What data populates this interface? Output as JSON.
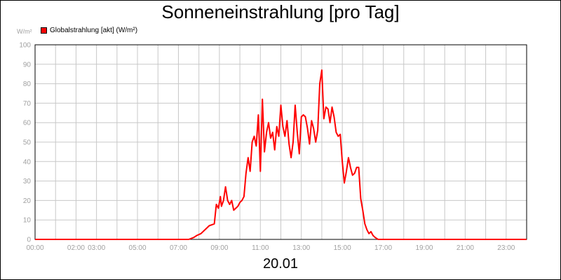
{
  "chart_data": {
    "type": "line",
    "title": "Sonneneinstrahlung [pro Tag]",
    "ylabel": "W/m²",
    "xlabel": "20.01",
    "ylim": [
      0,
      100
    ],
    "yticks": [
      0,
      10,
      20,
      30,
      40,
      50,
      60,
      70,
      80,
      90,
      100
    ],
    "xlim": [
      0,
      24
    ],
    "xtick_labels": [
      "00:00",
      "02:00",
      "03:00",
      "05:00",
      "07:00",
      "09:00",
      "11:00",
      "13:00",
      "15:00",
      "17:00",
      "19:00",
      "21:00",
      "23:00"
    ],
    "xtick_hours": [
      0,
      2,
      3,
      5,
      7,
      9,
      11,
      13,
      15,
      17,
      19,
      21,
      23
    ],
    "grid": true,
    "legend_position": "top-left",
    "series": [
      {
        "name": "Globalstrahlung [akt] (W/m²)",
        "color": "#ff0000",
        "x": [
          0,
          7.5,
          7.75,
          7.9,
          8.1,
          8.3,
          8.5,
          8.75,
          8.85,
          8.95,
          9.05,
          9.1,
          9.2,
          9.3,
          9.4,
          9.5,
          9.6,
          9.7,
          9.8,
          9.9,
          10.0,
          10.1,
          10.2,
          10.3,
          10.4,
          10.5,
          10.6,
          10.7,
          10.8,
          10.9,
          11.0,
          11.1,
          11.2,
          11.3,
          11.4,
          11.5,
          11.6,
          11.7,
          11.8,
          11.9,
          12.0,
          12.1,
          12.2,
          12.3,
          12.4,
          12.5,
          12.6,
          12.7,
          12.8,
          12.9,
          13.0,
          13.1,
          13.2,
          13.3,
          13.4,
          13.5,
          13.6,
          13.7,
          13.8,
          13.9,
          14.0,
          14.1,
          14.2,
          14.3,
          14.4,
          14.5,
          14.6,
          14.7,
          14.8,
          14.9,
          15.0,
          15.1,
          15.2,
          15.3,
          15.4,
          15.5,
          15.6,
          15.7,
          15.8,
          15.9,
          16.0,
          16.1,
          16.2,
          16.3,
          16.4,
          16.5,
          16.6,
          16.75,
          17.0,
          17.2,
          17.5,
          24
        ],
        "values": [
          0,
          0,
          1,
          2,
          3,
          5,
          7,
          8,
          18,
          16,
          22,
          17,
          20,
          27,
          20,
          18,
          20,
          15,
          16,
          17,
          19,
          20,
          22,
          34,
          42,
          35,
          50,
          53,
          48,
          64,
          35,
          72,
          45,
          55,
          60,
          52,
          55,
          46,
          58,
          53,
          69,
          58,
          53,
          61,
          49,
          42,
          50,
          69,
          55,
          44,
          63,
          64,
          63,
          57,
          49,
          61,
          57,
          50,
          56,
          80,
          87,
          62,
          68,
          67,
          60,
          68,
          63,
          55,
          53,
          54,
          40,
          29,
          35,
          42,
          37,
          33,
          34,
          37,
          37,
          21,
          15,
          8,
          5,
          3,
          4,
          2,
          1,
          0,
          0,
          0,
          0,
          0
        ]
      }
    ]
  }
}
